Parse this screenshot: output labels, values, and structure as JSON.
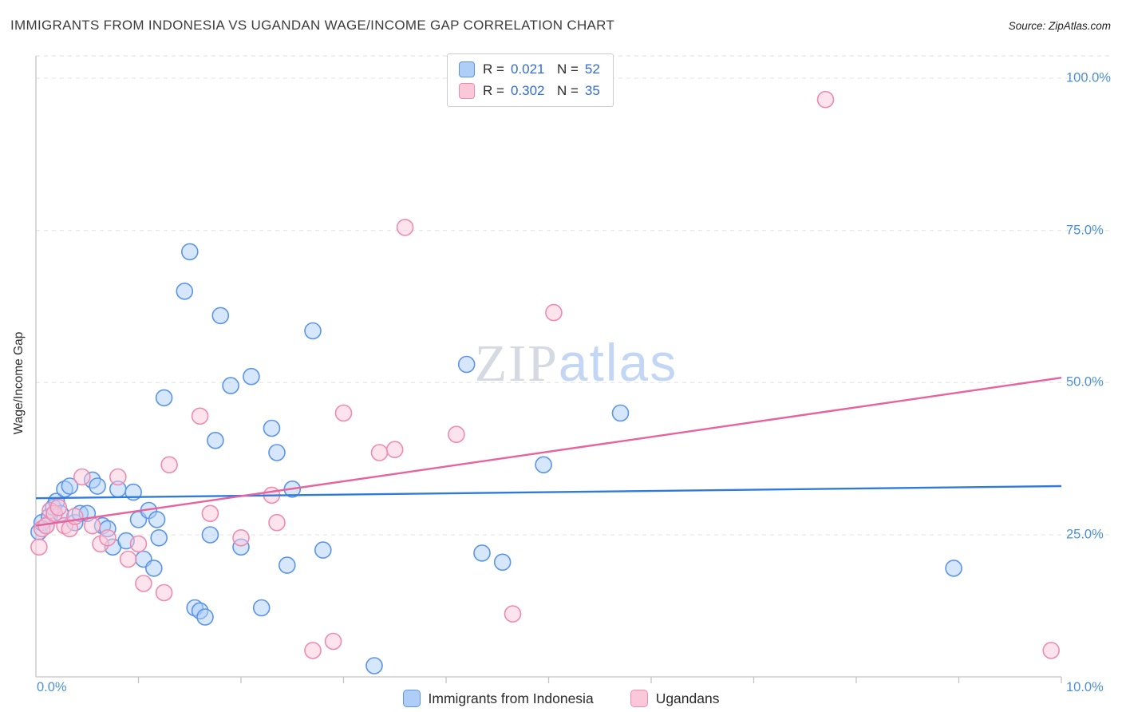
{
  "header": {
    "title": "IMMIGRANTS FROM INDONESIA VS UGANDAN WAGE/INCOME GAP CORRELATION CHART",
    "source": "Source: ZipAtlas.com"
  },
  "watermark": {
    "zip": "ZIP",
    "atlas": "atlas"
  },
  "axes": {
    "y_label": "Wage/Income Gap",
    "y_tick_labels": [
      "100.0%",
      "75.0%",
      "50.0%",
      "25.0%"
    ],
    "x_min_label": "0.0%",
    "x_max_label": "10.0%"
  },
  "legend_box": {
    "rows": [
      {
        "r_label": "R =",
        "r_value": "0.021",
        "n_label": "N =",
        "n_value": "52"
      },
      {
        "r_label": "R =",
        "r_value": "0.302",
        "n_label": "N =",
        "n_value": "35"
      }
    ]
  },
  "bottom_legend": [
    {
      "label": "Immigrants from Indonesia"
    },
    {
      "label": "Ugandans"
    }
  ],
  "chart_data": {
    "type": "scatter",
    "title": "IMMIGRANTS FROM INDONESIA VS UGANDAN WAGE/INCOME GAP CORRELATION CHART",
    "xlabel": "",
    "ylabel": "Wage/Income Gap",
    "xlim": [
      0,
      10
    ],
    "ylim": [
      0,
      105
    ],
    "x_axis_unit": "percent",
    "y_axis_unit": "percent",
    "y_gridlines": [
      25,
      50,
      75,
      100
    ],
    "grid": "dashed-horizontal",
    "legend_position": "top-center",
    "series": [
      {
        "name": "Immigrants from Indonesia",
        "R": 0.021,
        "N": 52,
        "stroke": "#5b94e8",
        "fill": "#aecdf7",
        "line": "#2f7bdd",
        "trend": {
          "x0": 0,
          "y0": 31.0,
          "x1": 10,
          "y1": 33.0
        },
        "points": [
          [
            0.03,
            25.5
          ],
          [
            0.06,
            27
          ],
          [
            0.1,
            26.5
          ],
          [
            0.13,
            28
          ],
          [
            0.17,
            29.5
          ],
          [
            0.2,
            30.5
          ],
          [
            0.24,
            28.5
          ],
          [
            0.28,
            32.5
          ],
          [
            0.33,
            33
          ],
          [
            0.38,
            27
          ],
          [
            0.43,
            28.5
          ],
          [
            0.5,
            28.5
          ],
          [
            0.55,
            34
          ],
          [
            0.6,
            33
          ],
          [
            0.65,
            26.5
          ],
          [
            0.7,
            26
          ],
          [
            0.75,
            23
          ],
          [
            0.8,
            32.5
          ],
          [
            0.88,
            24
          ],
          [
            0.95,
            32
          ],
          [
            1.0,
            27.5
          ],
          [
            1.05,
            21
          ],
          [
            1.1,
            29
          ],
          [
            1.15,
            19.5
          ],
          [
            1.18,
            27.5
          ],
          [
            1.2,
            24.5
          ],
          [
            1.25,
            47.5
          ],
          [
            1.45,
            65
          ],
          [
            1.5,
            71.5
          ],
          [
            1.55,
            13
          ],
          [
            1.6,
            12.5
          ],
          [
            1.65,
            11.5
          ],
          [
            1.7,
            25
          ],
          [
            1.75,
            40.5
          ],
          [
            1.8,
            61
          ],
          [
            1.9,
            49.5
          ],
          [
            2.0,
            23
          ],
          [
            2.1,
            51
          ],
          [
            2.2,
            13
          ],
          [
            2.3,
            42.5
          ],
          [
            2.35,
            38.5
          ],
          [
            2.45,
            20
          ],
          [
            2.5,
            32.5
          ],
          [
            2.7,
            58.5
          ],
          [
            2.8,
            22.5
          ],
          [
            3.3,
            3.5
          ],
          [
            4.2,
            53
          ],
          [
            4.35,
            22
          ],
          [
            4.55,
            20.5
          ],
          [
            4.95,
            36.5
          ],
          [
            5.7,
            45
          ],
          [
            8.95,
            19.5
          ]
        ]
      },
      {
        "name": "Ugandans",
        "R": 0.302,
        "N": 35,
        "stroke": "#f08bb0",
        "fill": "#fbc8da",
        "line": "#e8639c",
        "trend": {
          "x0": 0,
          "y0": 26.5,
          "x1": 10,
          "y1": 50.8
        },
        "points": [
          [
            0.03,
            23
          ],
          [
            0.06,
            26
          ],
          [
            0.1,
            26.5
          ],
          [
            0.14,
            29
          ],
          [
            0.18,
            28.5
          ],
          [
            0.22,
            29.5
          ],
          [
            0.28,
            26.5
          ],
          [
            0.33,
            26
          ],
          [
            0.38,
            28
          ],
          [
            0.45,
            34.5
          ],
          [
            0.55,
            26.5
          ],
          [
            0.63,
            23.5
          ],
          [
            0.7,
            24.5
          ],
          [
            0.8,
            34.5
          ],
          [
            0.9,
            21
          ],
          [
            1.0,
            23.5
          ],
          [
            1.05,
            17
          ],
          [
            1.25,
            15.5
          ],
          [
            1.3,
            36.5
          ],
          [
            1.6,
            44.5
          ],
          [
            1.7,
            28.5
          ],
          [
            2.0,
            24.5
          ],
          [
            2.3,
            31.5
          ],
          [
            2.35,
            27
          ],
          [
            2.7,
            6
          ],
          [
            2.9,
            7.5
          ],
          [
            3.0,
            45
          ],
          [
            3.35,
            38.5
          ],
          [
            3.5,
            39
          ],
          [
            3.6,
            75.5
          ],
          [
            4.1,
            41.5
          ],
          [
            4.65,
            12
          ],
          [
            5.05,
            61.5
          ],
          [
            7.7,
            96.5
          ],
          [
            9.9,
            6
          ]
        ]
      }
    ]
  }
}
